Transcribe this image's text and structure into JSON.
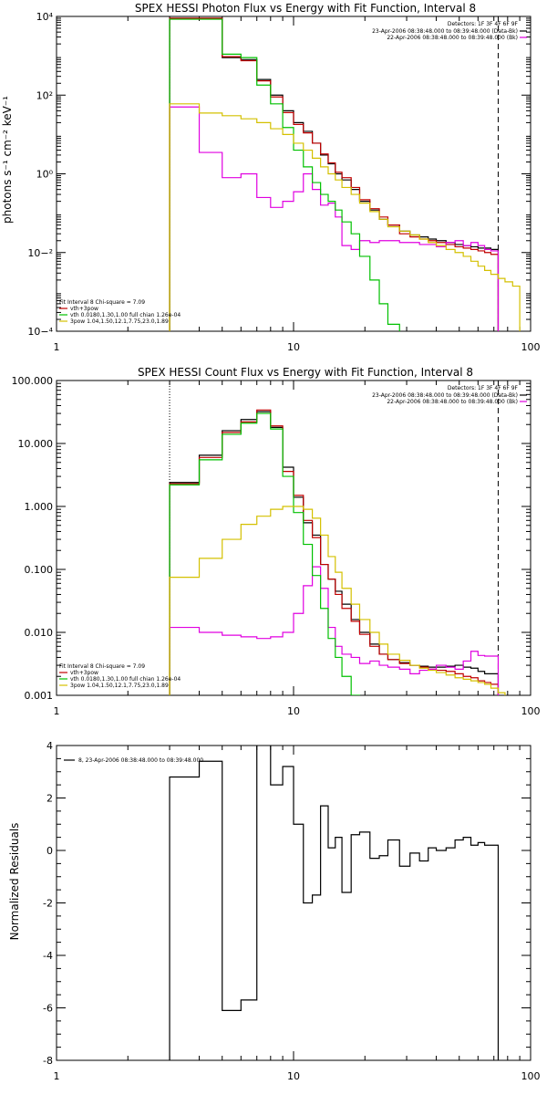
{
  "chart_data": [
    {
      "id": "photon",
      "type": "line",
      "title": "SPEX HESSI Photon Flux vs Energy with Fit Function, Interval 8",
      "ylabel": "photons s⁻¹ cm⁻² keV⁻¹",
      "xlabel": "",
      "xscale": "log",
      "yscale": "log",
      "xlim": [
        1,
        100
      ],
      "ylim": [
        0.0001,
        10000
      ],
      "x_ticks": [
        "1",
        "10",
        "100"
      ],
      "y_ticks": [
        "10−⁴",
        "10−²",
        "10⁰",
        "10²",
        "10⁴"
      ],
      "detectors_label": "Detectors: 1F 3F 4F 6F 9F",
      "legend_top_right": [
        {
          "text": "23-Apr-2006 08:38:48.000 to 08:39:48.000 (Data-Bk)",
          "color": "#000000"
        },
        {
          "text": "22-Apr-2006 08:38:48.000 to 08:39:48.000 (Bk)",
          "color": "#e000e0"
        }
      ],
      "legend_bottom_left": [
        {
          "text": "Fit Interval 8   Chi-square = 7.09",
          "color": "#000000"
        },
        {
          "text": "vth+3pow",
          "color": "#c00000"
        },
        {
          "text": "vth 0.0180,1.30,1.00  full chian 1.26e-04",
          "color": "#00c000"
        },
        {
          "text": "3pow 1.04,1.50,12.1,7.75,23.0,1.89",
          "color": "#d4c000"
        }
      ],
      "vlines": [
        {
          "x": 3.0,
          "style": "dotted",
          "color": "#000000"
        },
        {
          "x": 73,
          "style": "dashed",
          "color": "#000000"
        }
      ],
      "edges": [
        3,
        4,
        5,
        6,
        7,
        8,
        9,
        10,
        11,
        12,
        13,
        14,
        15,
        16,
        17.5,
        19,
        21,
        23,
        25,
        28,
        31,
        34,
        37,
        40,
        44,
        48,
        52,
        56,
        60,
        64,
        68,
        73,
        78,
        84,
        90,
        100
      ],
      "series": [
        {
          "name": "Data-Bk",
          "color": "#000000",
          "values": [
            9000,
            9000,
            900,
            800,
            250,
            100,
            40,
            20,
            12,
            6,
            3,
            1.8,
            1,
            0.7,
            0.4,
            0.2,
            0.12,
            0.07,
            0.05,
            0.035,
            0.028,
            0.025,
            0.022,
            0.02,
            0.018,
            0.016,
            0.015,
            0.014,
            0.013,
            0.013,
            0.012
          ]
        },
        {
          "name": "vth+3pow",
          "color": "#c00000",
          "values": [
            9000,
            9000,
            950,
            750,
            230,
            90,
            36,
            18,
            11,
            6,
            3.2,
            1.9,
            1.1,
            0.8,
            0.45,
            0.22,
            0.13,
            0.08,
            0.05,
            0.03,
            0.025,
            0.022,
            0.02,
            0.018,
            0.016,
            0.014,
            0.013,
            0.012,
            0.011,
            0.01,
            0.009
          ]
        },
        {
          "name": "Bk",
          "color": "#e000e0",
          "values": [
            50,
            3.5,
            0.8,
            1.0,
            0.25,
            0.14,
            0.2,
            0.35,
            1.0,
            0.4,
            0.16,
            0.18,
            0.08,
            0.015,
            0.012,
            0.02,
            0.018,
            0.02,
            0.02,
            0.018,
            0.018,
            0.016,
            0.016,
            0.014,
            0.018,
            0.02,
            0.015,
            0.018,
            0.015,
            0.012,
            0.011
          ]
        },
        {
          "name": "vth",
          "color": "#00c000",
          "values": [
            8500,
            8500,
            1100,
            900,
            180,
            60,
            15,
            4,
            1.5,
            0.6,
            0.3,
            0.2,
            0.12,
            0.06,
            0.03,
            0.008,
            0.002,
            0.0005,
            0.00015,
            8e-05
          ]
        },
        {
          "name": "3pow",
          "color": "#d4c000",
          "values": [
            60,
            35,
            30,
            25,
            20,
            14,
            10,
            6,
            4,
            2.5,
            1.5,
            1.0,
            0.7,
            0.45,
            0.3,
            0.18,
            0.11,
            0.07,
            0.045,
            0.035,
            0.028,
            0.022,
            0.018,
            0.015,
            0.012,
            0.01,
            0.008,
            0.006,
            0.0045,
            0.0035,
            0.0028,
            0.0022,
            0.0018,
            0.0014
          ]
        }
      ]
    },
    {
      "id": "count",
      "type": "line",
      "title": "SPEX HESSI Count Flux vs Energy with Fit Function, Interval 8",
      "xlabel": "",
      "ylabel": "",
      "xscale": "log",
      "yscale": "log",
      "xlim": [
        1,
        100
      ],
      "ylim": [
        0.001,
        100
      ],
      "x_ticks": [
        "1",
        "10",
        "100"
      ],
      "y_ticks": [
        "0.001",
        "0.010",
        "0.100",
        "1.000",
        "10.000",
        "100.000"
      ],
      "detectors_label": "Detectors: 1F 3F 4F 6F 9F",
      "legend_top_right": [
        {
          "text": "23-Apr-2006 08:38:48.000 to 08:39:48.000 (Data-Bk)",
          "color": "#000000"
        },
        {
          "text": "22-Apr-2006 08:38:48.000 to 08:39:48.000 (Bk)",
          "color": "#e000e0"
        }
      ],
      "legend_bottom_left": [
        {
          "text": "Fit Interval 8   Chi-square = 7.09",
          "color": "#000000"
        },
        {
          "text": "vth+3pow",
          "color": "#c00000"
        },
        {
          "text": "vth 0.0180,1.30,1.00  full chian 1.26e-04",
          "color": "#00c000"
        },
        {
          "text": "3pow 1.04,1.50,12.1,7.75,23.0,1.89",
          "color": "#d4c000"
        }
      ],
      "vlines": [
        {
          "x": 3.0,
          "style": "dotted",
          "color": "#000000"
        },
        {
          "x": 73,
          "style": "dashed",
          "color": "#000000"
        }
      ],
      "edges": [
        3,
        4,
        5,
        6,
        7,
        8,
        9,
        10,
        11,
        12,
        13,
        14,
        15,
        16,
        17.5,
        19,
        21,
        23,
        25,
        28,
        31,
        34,
        37,
        40,
        44,
        48,
        52,
        56,
        60,
        64,
        68,
        73,
        78,
        84,
        90,
        100
      ],
      "series": [
        {
          "name": "Data-Bk",
          "color": "#000000",
          "values": [
            2.4,
            6.5,
            16,
            24,
            32,
            18,
            4.2,
            1.4,
            0.55,
            0.35,
            0.12,
            0.07,
            0.045,
            0.028,
            0.016,
            0.01,
            0.0065,
            0.0045,
            0.0037,
            0.0033,
            0.003,
            0.0029,
            0.0028,
            0.0028,
            0.0029,
            0.003,
            0.0028,
            0.0027,
            0.0024,
            0.0022,
            0.0022
          ]
        },
        {
          "name": "vth+3pow",
          "color": "#c00000",
          "values": [
            2.3,
            6.0,
            15,
            22,
            34,
            19,
            3.6,
            1.5,
            0.6,
            0.32,
            0.12,
            0.07,
            0.04,
            0.024,
            0.015,
            0.0093,
            0.006,
            0.0045,
            0.0037,
            0.0032,
            0.003,
            0.0028,
            0.0026,
            0.0025,
            0.0024,
            0.0022,
            0.002,
            0.0019,
            0.0017,
            0.0016,
            0.0015
          ]
        },
        {
          "name": "Bk",
          "color": "#e000e0",
          "values": [
            0.012,
            0.01,
            0.009,
            0.0085,
            0.008,
            0.0085,
            0.01,
            0.02,
            0.055,
            0.11,
            0.05,
            0.012,
            0.006,
            0.0045,
            0.004,
            0.0032,
            0.0035,
            0.003,
            0.0028,
            0.0026,
            0.0022,
            0.0025,
            0.0026,
            0.003,
            0.0028,
            0.0026,
            0.0035,
            0.005,
            0.0043,
            0.0042,
            0.0042
          ]
        },
        {
          "name": "vth",
          "color": "#00c000",
          "values": [
            2.2,
            5.5,
            14,
            21,
            30,
            17,
            3.0,
            0.8,
            0.25,
            0.08,
            0.024,
            0.008,
            0.004,
            0.002,
            0.001
          ]
        },
        {
          "name": "3pow",
          "color": "#d4c000",
          "values": [
            0.075,
            0.15,
            0.3,
            0.52,
            0.7,
            0.9,
            1.0,
            1.0,
            0.9,
            0.65,
            0.35,
            0.16,
            0.09,
            0.05,
            0.028,
            0.016,
            0.01,
            0.0065,
            0.0045,
            0.0036,
            0.003,
            0.0027,
            0.0025,
            0.0023,
            0.0021,
            0.0019,
            0.0018,
            0.0017,
            0.0016,
            0.0015,
            0.0013,
            0.0011,
            0.00095
          ]
        }
      ]
    },
    {
      "id": "residuals",
      "type": "line",
      "title": "",
      "ylabel": "Normalized Residuals",
      "xlabel": "",
      "xscale": "log",
      "yscale": "linear",
      "xlim": [
        1,
        100
      ],
      "ylim": [
        -8,
        4
      ],
      "x_ticks": [
        "1",
        "10",
        "100"
      ],
      "y_ticks": [
        "-8",
        "-6",
        "-4",
        "-2",
        "0",
        "2",
        "4"
      ],
      "legend_top_left": [
        {
          "text": "8, 23-Apr-2006 08:38:48.000 to 08:39:48.000",
          "color": "#000000"
        }
      ],
      "edges": [
        3,
        4,
        5,
        6,
        7,
        8,
        9,
        10,
        11,
        12,
        13,
        14,
        15,
        16,
        17.5,
        19,
        21,
        23,
        25,
        28,
        31,
        34,
        37,
        40,
        44,
        48,
        52,
        56,
        60,
        64,
        68,
        73
      ],
      "series": [
        {
          "name": "",
          "color": "#000000",
          "values": [
            2.8,
            3.4,
            -6.1,
            -5.7,
            4.1,
            2.5,
            3.2,
            1.0,
            -2.0,
            -1.7,
            1.7,
            0.1,
            0.5,
            -1.6,
            0.6,
            0.7,
            -0.3,
            -0.2,
            0.4,
            -0.6,
            -0.1,
            -0.4,
            0.1,
            0.0,
            0.1,
            0.4,
            0.5,
            0.2,
            0.3,
            0.2,
            0.2
          ]
        }
      ]
    }
  ]
}
